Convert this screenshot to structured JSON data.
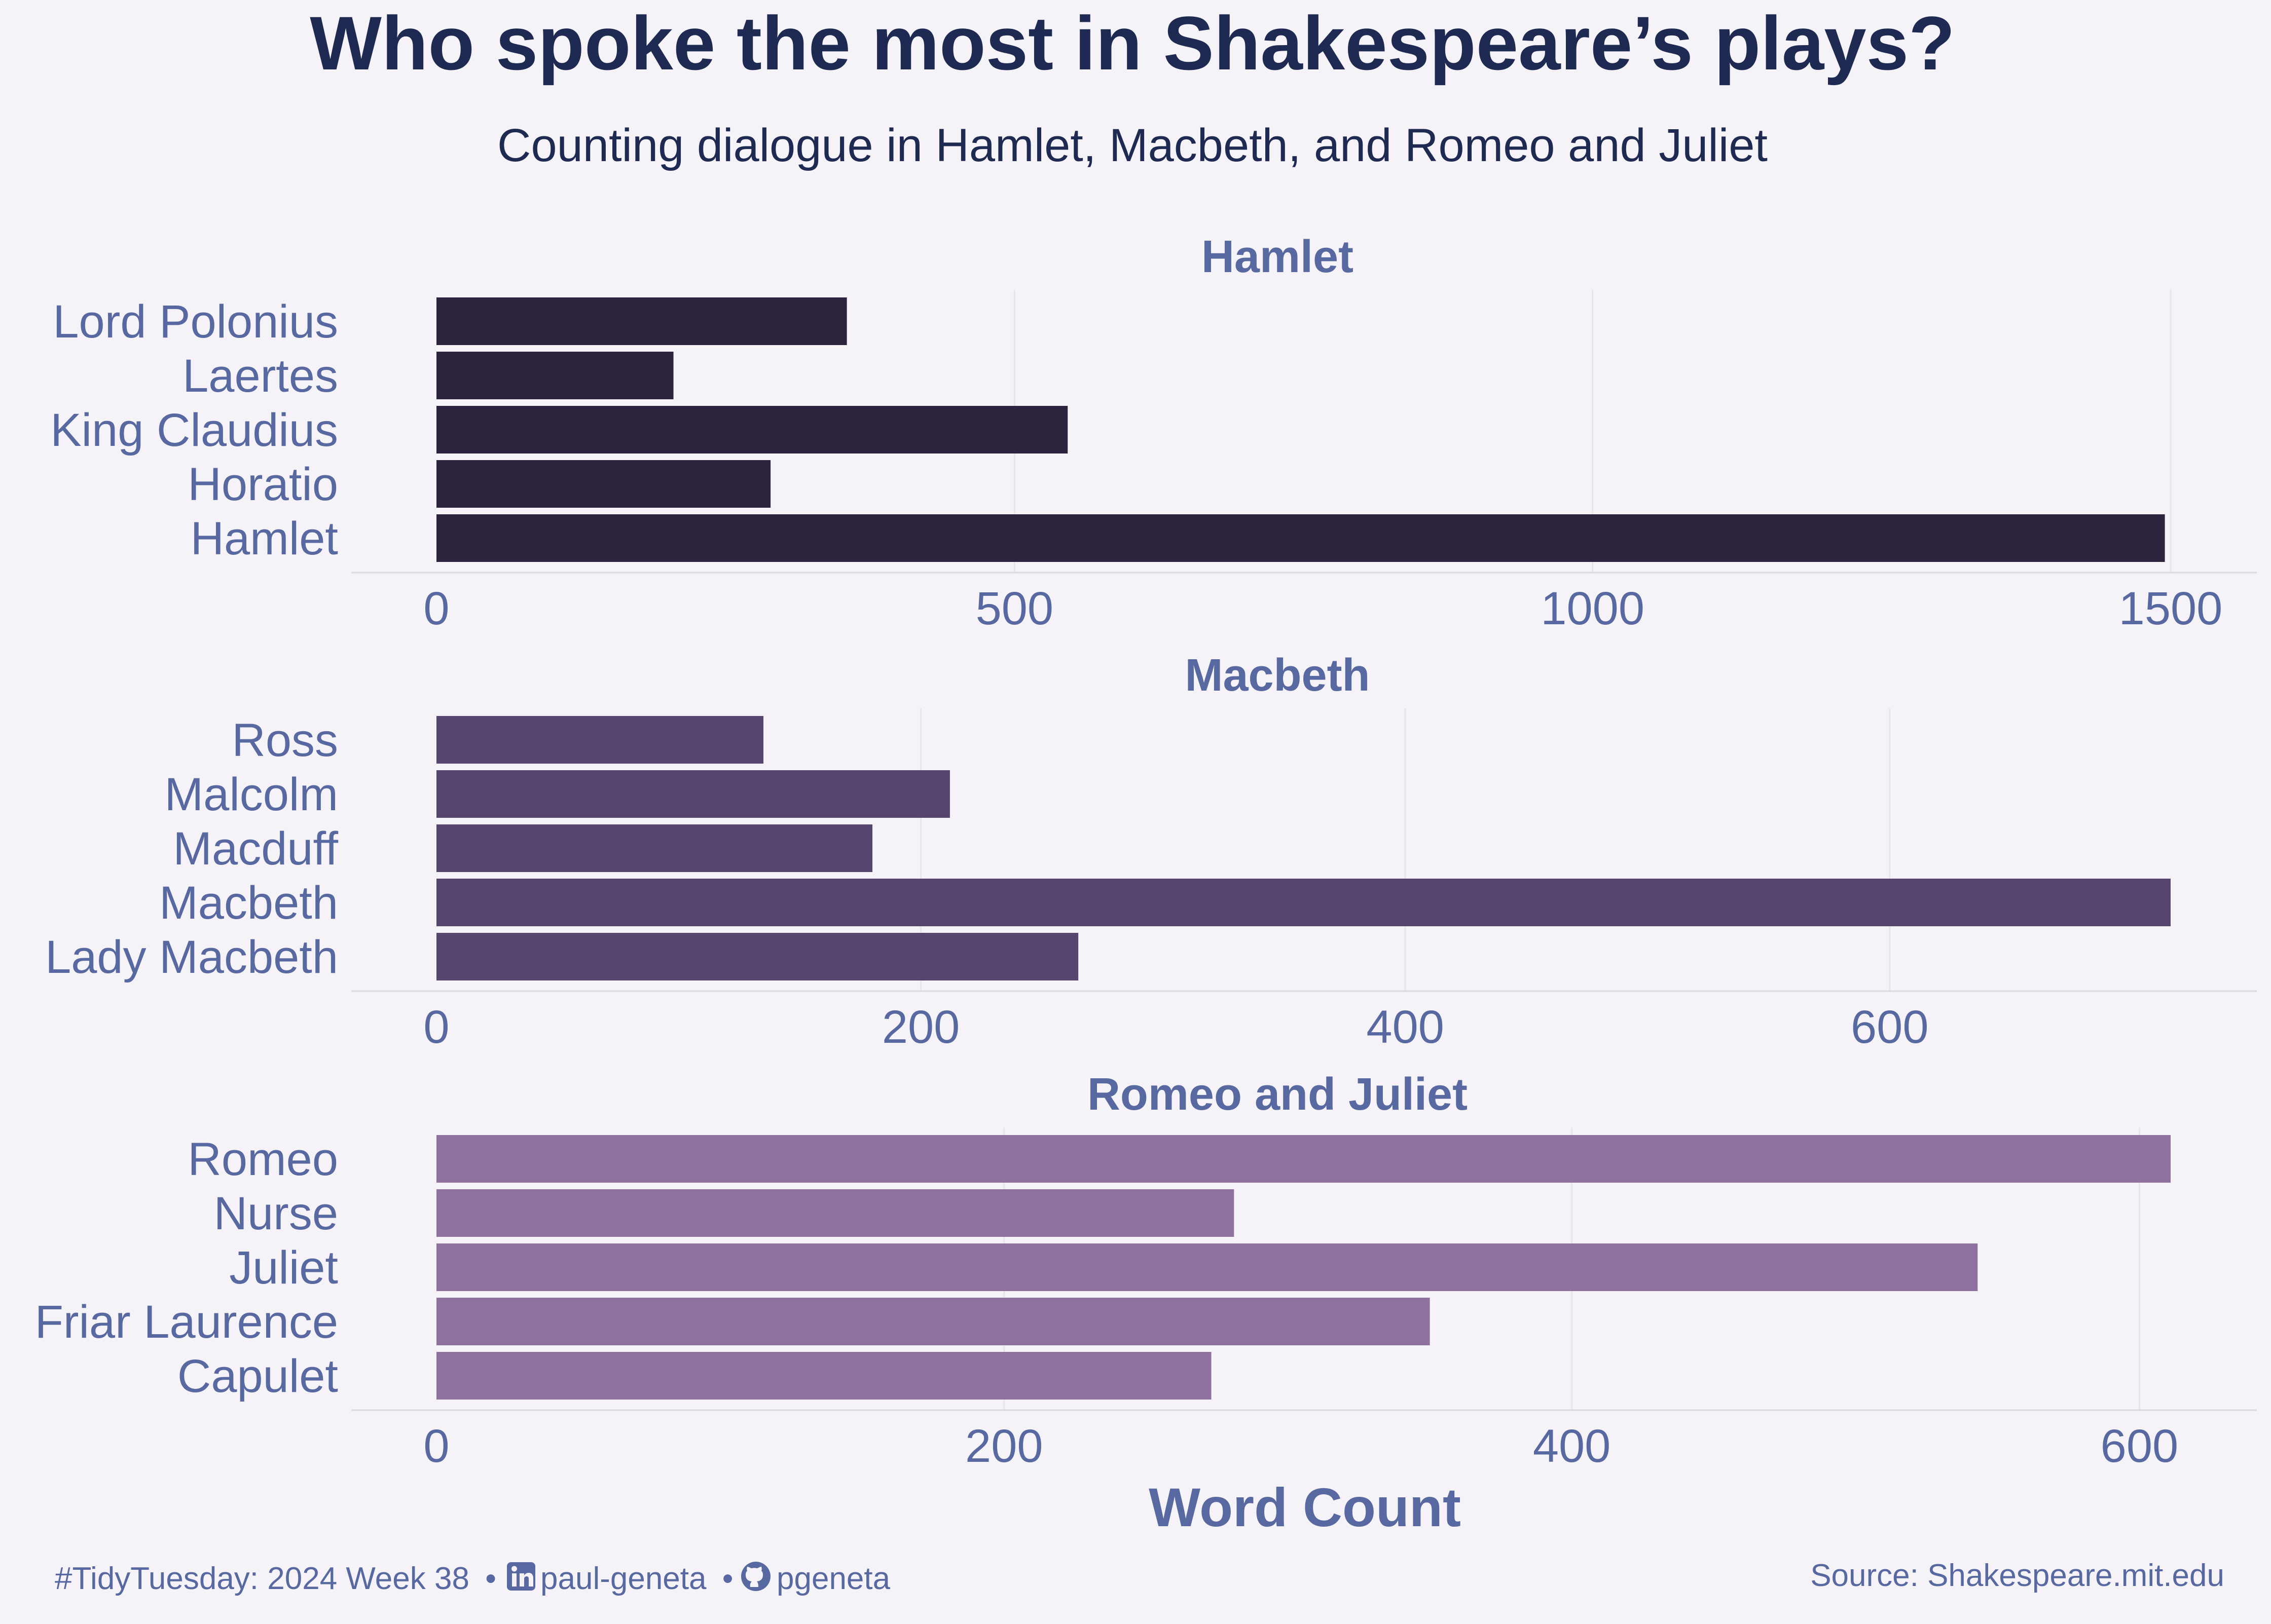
{
  "title": "Who spoke the most in Shakespeare’s plays?",
  "subtitle": "Counting dialogue in Hamlet, Macbeth, and Romeo and Juliet",
  "x_axis_title": "Word Count",
  "caption_left": {
    "tag": "#TidyTuesday: 2024 Week 38",
    "separator": "•",
    "linkedin_icon": "linkedin-icon",
    "linkedin": "paul-geneta",
    "github_icon": "github-icon",
    "github": "pgeneta"
  },
  "caption_right": "Source: Shakespeare.mit.edu",
  "colors": {
    "background": "#f5f3f7",
    "title": "#1f2a52",
    "label": "#5868a0",
    "grid": "#e8e6ea",
    "axis_line": "#dcdade"
  },
  "chart_data": [
    {
      "type": "bar",
      "orientation": "horizontal",
      "title": "Hamlet",
      "categories": [
        "Lord Polonius",
        "Laertes",
        "King Claudius",
        "Horatio",
        "Hamlet"
      ],
      "values": [
        355,
        205,
        546,
        289,
        1495
      ],
      "xlim": [
        0,
        1500
      ],
      "xticks": [
        0,
        500,
        1000,
        1500
      ],
      "color": "#2c233e",
      "grid": true
    },
    {
      "type": "bar",
      "orientation": "horizontal",
      "title": "Macbeth",
      "categories": [
        "Ross",
        "Malcolm",
        "Macduff",
        "Macbeth",
        "Lady Macbeth"
      ],
      "values": [
        135,
        212,
        180,
        716,
        265
      ],
      "xlim": [
        0,
        716
      ],
      "xticks": [
        0,
        200,
        400,
        600
      ],
      "color": "#56466f",
      "grid": true
    },
    {
      "type": "bar",
      "orientation": "horizontal",
      "title": "Romeo and Juliet",
      "categories": [
        "Romeo",
        "Nurse",
        "Juliet",
        "Friar Laurence",
        "Capulet"
      ],
      "values": [
        611,
        281,
        543,
        350,
        273
      ],
      "xlim": [
        0,
        611
      ],
      "xticks": [
        0,
        200,
        400,
        600
      ],
      "color": "#8f719f",
      "grid": true
    }
  ]
}
